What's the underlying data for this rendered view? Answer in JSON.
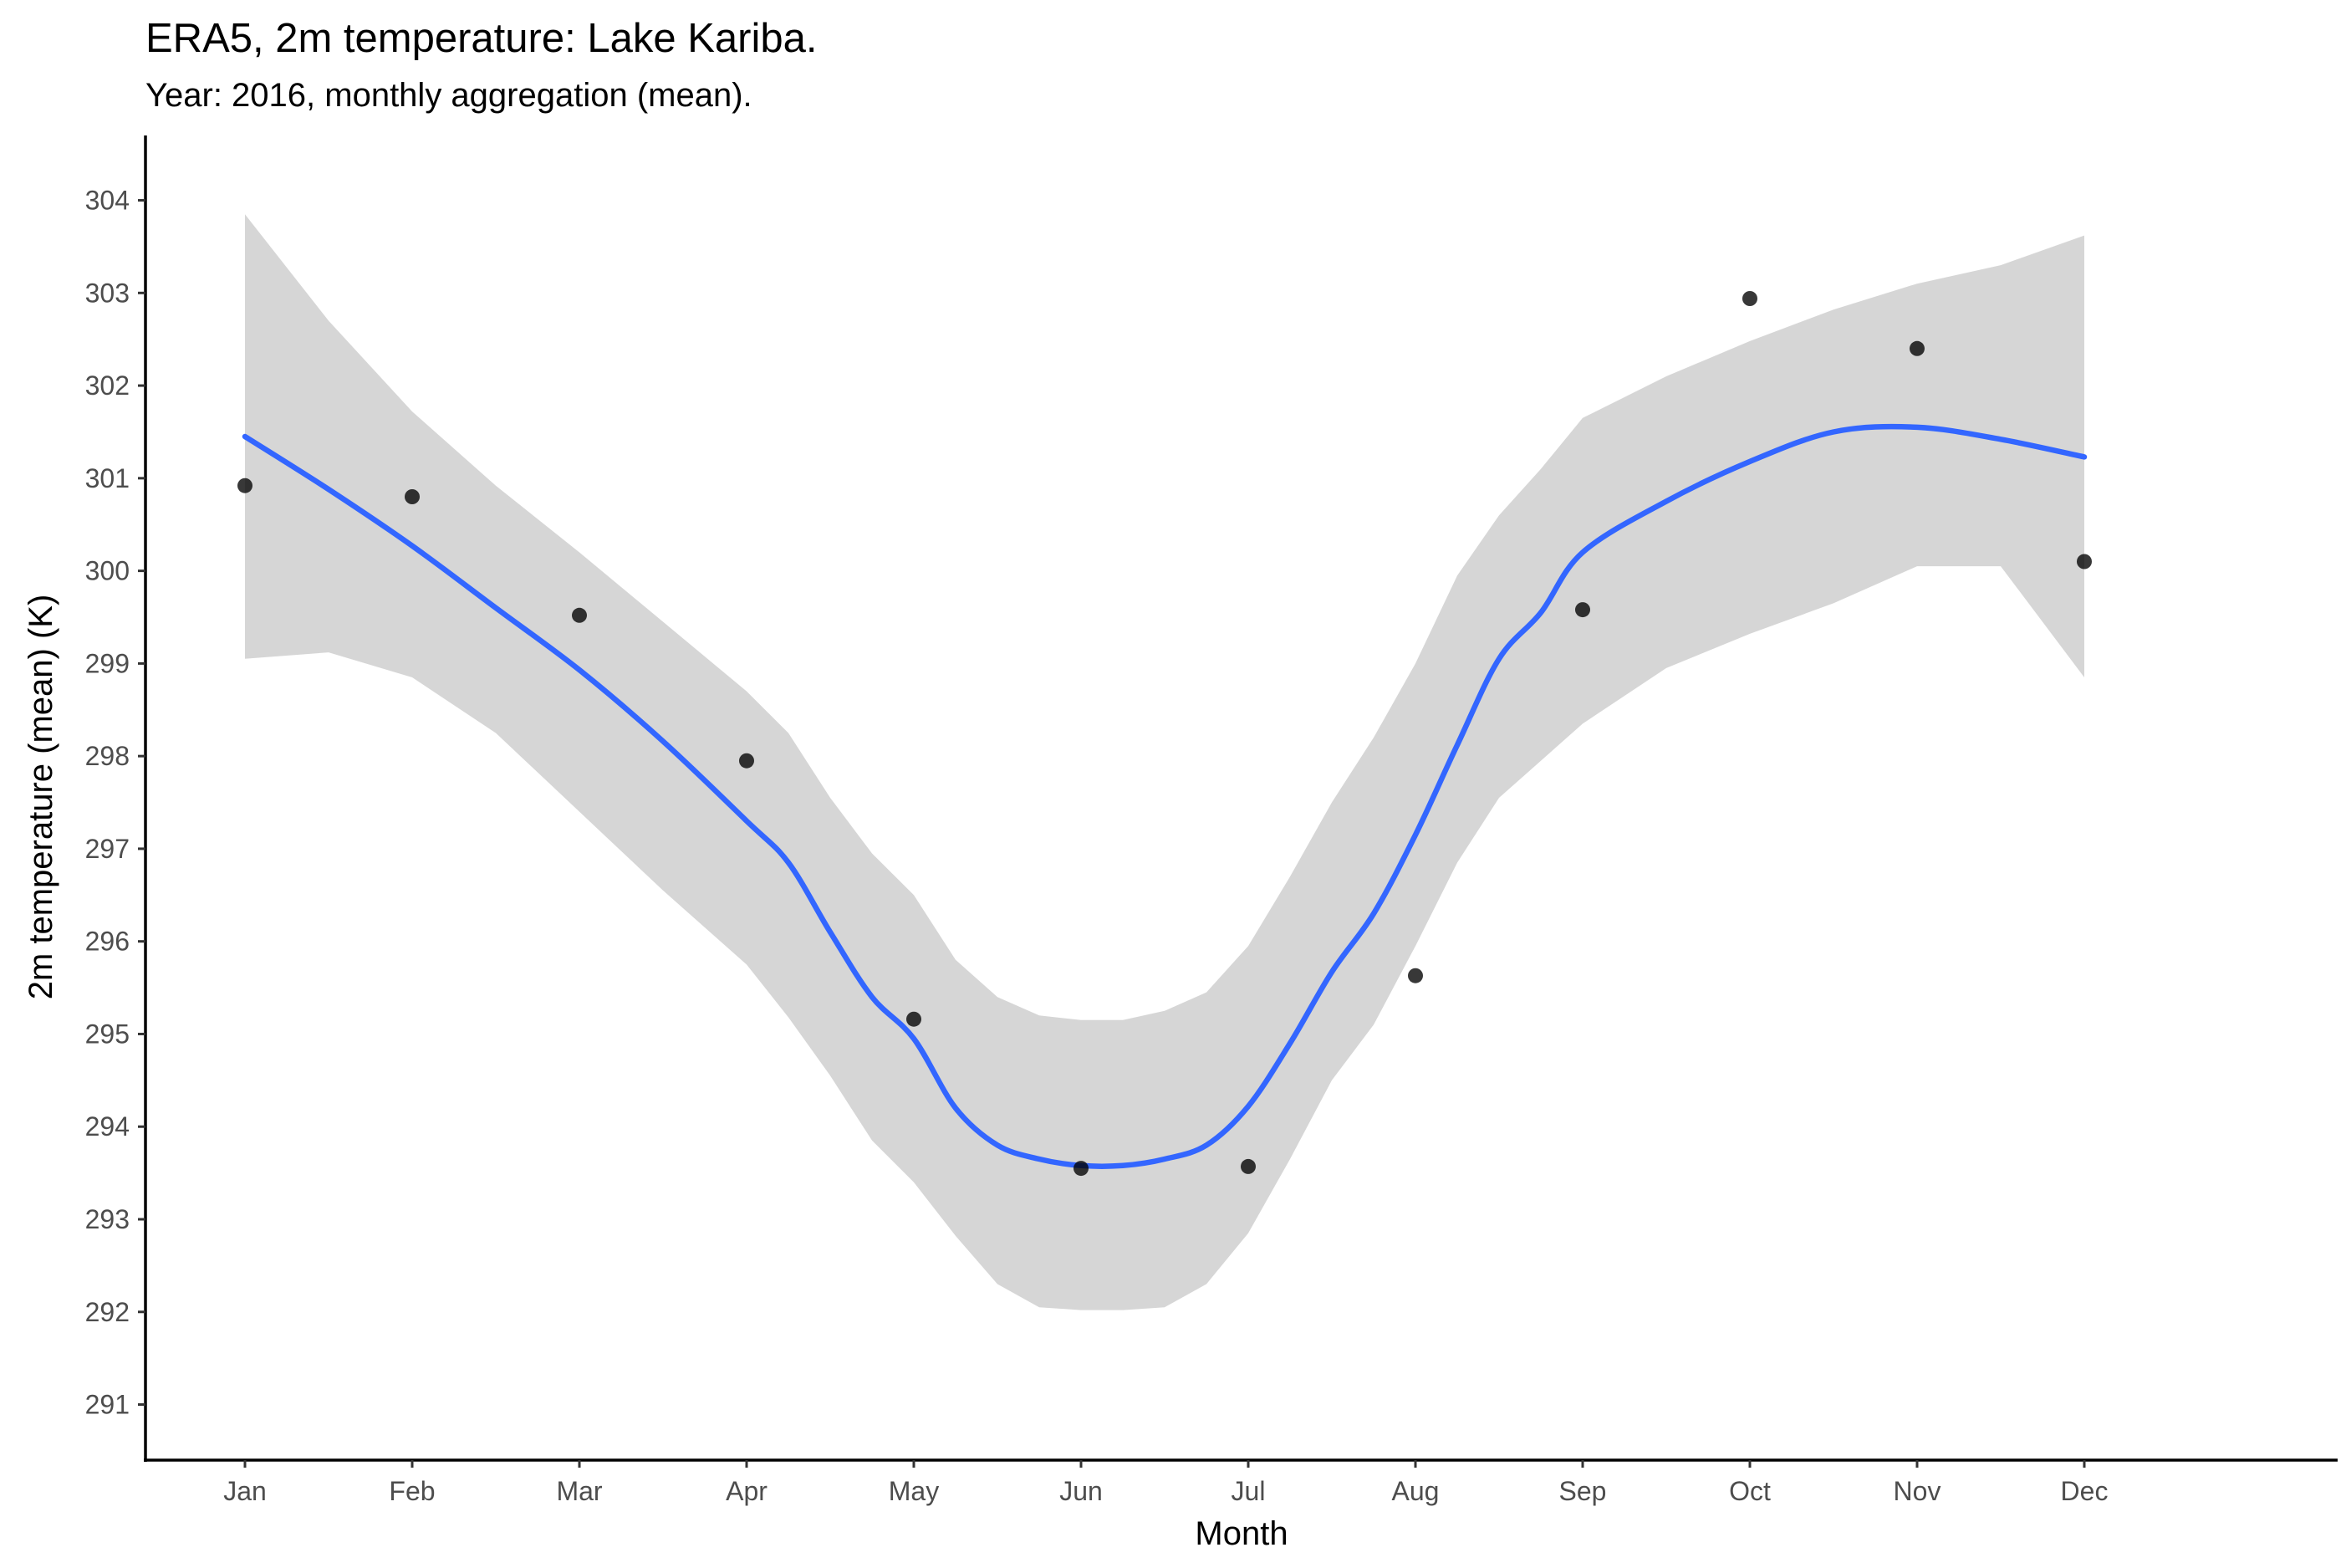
{
  "chart_data": {
    "type": "scatter",
    "title": "ERA5, 2m temperature: Lake Kariba.",
    "subtitle": "Year: 2016, monthly aggregation (mean).",
    "xlabel": "Month",
    "ylabel": "2m temperature (mean) (K)",
    "categories": [
      "Jan",
      "Feb",
      "Mar",
      "Apr",
      "May",
      "Jun",
      "Jul",
      "Aug",
      "Sep",
      "Oct",
      "Nov",
      "Dec"
    ],
    "ylim": [
      290.4,
      304.7
    ],
    "yticks": [
      291,
      292,
      293,
      294,
      295,
      296,
      297,
      298,
      299,
      300,
      301,
      302,
      303,
      304
    ],
    "grid": false,
    "legend": "none",
    "series": [
      {
        "type": "scatter",
        "values": [
          300.92,
          300.8,
          299.52,
          297.95,
          295.16,
          293.55,
          293.57,
          295.63,
          299.58,
          302.94,
          302.4,
          300.1
        ],
        "color": "#000000"
      }
    ],
    "smooth": {
      "type": "loess",
      "color": "#3366ff",
      "ribbon_color": "#d6d6d6",
      "x": [
        1,
        1.5,
        2,
        2.5,
        3,
        3.5,
        4,
        4.25,
        4.5,
        4.75,
        5,
        5.25,
        5.5,
        5.75,
        6,
        6.25,
        6.5,
        6.75,
        7,
        7.25,
        7.5,
        7.75,
        8,
        8.25,
        8.5,
        8.75,
        9,
        9.5,
        10,
        10.5,
        11,
        11.5,
        12
      ],
      "fit": [
        301.45,
        300.88,
        300.27,
        299.6,
        298.93,
        298.16,
        297.3,
        296.85,
        296.1,
        295.4,
        294.95,
        294.2,
        293.8,
        293.65,
        293.58,
        293.58,
        293.65,
        293.8,
        294.22,
        294.9,
        295.67,
        296.3,
        297.15,
        298.12,
        299.05,
        299.55,
        300.2,
        300.75,
        301.18,
        301.5,
        301.55,
        301.42,
        301.23
      ],
      "lower": [
        299.05,
        299.12,
        298.85,
        298.25,
        297.4,
        296.55,
        295.75,
        295.18,
        294.55,
        293.85,
        293.4,
        292.82,
        292.3,
        292.05,
        292.02,
        292.02,
        292.05,
        292.3,
        292.85,
        293.65,
        294.5,
        295.1,
        295.95,
        296.85,
        297.55,
        297.95,
        298.35,
        298.95,
        299.32,
        299.65,
        300.05,
        300.05,
        298.85
      ],
      "upper": [
        303.85,
        302.7,
        301.72,
        300.92,
        300.2,
        299.45,
        298.7,
        298.25,
        297.55,
        296.95,
        296.5,
        295.8,
        295.4,
        295.2,
        295.15,
        295.15,
        295.25,
        295.45,
        295.95,
        296.7,
        297.5,
        298.2,
        299.0,
        299.95,
        300.6,
        301.1,
        301.65,
        302.1,
        302.48,
        302.82,
        303.1,
        303.3,
        303.62
      ]
    }
  }
}
